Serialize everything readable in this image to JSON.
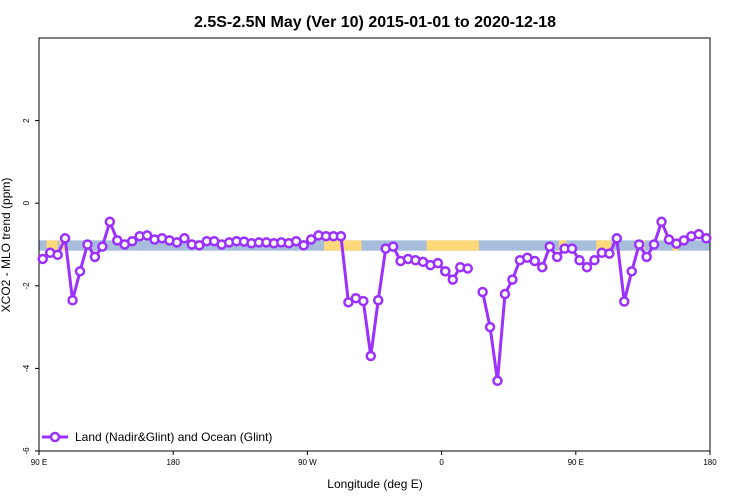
{
  "chart_data": {
    "type": "line",
    "title": "2.5S-2.5N May (Ver 10)   2015-01-01 to 2020-12-18",
    "xlabel": "Longitude (deg E)",
    "ylabel": "XCO2 - MLO trend (ppm)",
    "xlim": [
      90,
      450
    ],
    "ylim": [
      -6,
      4
    ],
    "x_ticks": [
      {
        "value": 90,
        "label": "90 E"
      },
      {
        "value": 162,
        "label": "180"
      },
      {
        "value": 234,
        "label": "90 W"
      },
      {
        "value": 306,
        "label": "0"
      },
      {
        "value": 378,
        "label": "90 E"
      },
      {
        "value": 450,
        "label": "180"
      }
    ],
    "y_ticks": [
      {
        "value": -6,
        "label": "-6"
      },
      {
        "value": -4,
        "label": "-4"
      },
      {
        "value": -2,
        "label": "-2"
      },
      {
        "value": 0,
        "label": "0"
      },
      {
        "value": 2,
        "label": "2"
      }
    ],
    "grid": false,
    "legend_position": "bottom-left",
    "band": {
      "y_range": [
        -1.15,
        -0.9
      ],
      "colors": {
        "ocean": "#a6bddb",
        "land": "#fdd97a"
      },
      "land_x_ranges": [
        [
          94,
          100
        ],
        [
          101,
          104
        ],
        [
          243,
          263
        ],
        [
          298,
          326
        ],
        [
          369,
          373
        ],
        [
          389,
          397
        ],
        [
          413,
          415
        ],
        [
          430,
          433
        ]
      ]
    },
    "series": [
      {
        "name": "Land (Nadir&Glint) and Ocean (Glint)",
        "color": "#9b30ff",
        "segments": [
          {
            "x": [
              92,
              96,
              100,
              104,
              108,
              112,
              116,
              120,
              124,
              128,
              132,
              136,
              140,
              144,
              148,
              152,
              156,
              160,
              164,
              168,
              172,
              176,
              180,
              184,
              188,
              192,
              196,
              200,
              204,
              208,
              212,
              216,
              220,
              224,
              228,
              232,
              236,
              240,
              244,
              248,
              252,
              256,
              260,
              264,
              268,
              272,
              276,
              280,
              284,
              288,
              292,
              296,
              300,
              304,
              308
            ],
            "y": [
              -1.35,
              -1.2,
              -1.25,
              -0.85,
              -2.35,
              -1.65,
              -1.0,
              -1.3,
              -1.05,
              -0.45,
              -0.9,
              -1.0,
              -0.92,
              -0.8,
              -0.78,
              -0.88,
              -0.85,
              -0.9,
              -0.95,
              -0.85,
              -1.0,
              -1.02,
              -0.92,
              -0.92,
              -1.0,
              -0.95,
              -0.92,
              -0.93,
              -0.97,
              -0.95,
              -0.95,
              -0.97,
              -0.95,
              -0.97,
              -0.92,
              -1.02,
              -0.88,
              -0.78,
              -0.8,
              -0.8,
              -0.8,
              -2.4,
              -2.3,
              -2.37,
              -3.7,
              -2.35,
              -1.1,
              -1.05,
              -1.4,
              -1.35,
              -1.38,
              -1.42,
              -1.5,
              -1.45,
              -1.65
            ]
          },
          {
            "x": [
              308,
              312,
              316,
              320
            ],
            "y": [
              -1.65,
              -1.85,
              -1.55,
              -1.58
            ]
          },
          {
            "x": [
              328,
              332,
              336,
              340,
              344,
              348,
              352,
              356,
              360,
              364,
              368,
              372,
              376,
              380,
              384,
              388,
              392,
              396,
              400,
              404,
              408,
              412,
              416,
              420,
              424,
              428,
              432,
              436,
              440,
              444,
              448
            ],
            "y": [
              -2.15,
              -3.0,
              -4.3,
              -2.2,
              -1.85,
              -1.38,
              -1.32,
              -1.4,
              -1.55,
              -1.05,
              -1.3,
              -1.1,
              -1.1,
              -1.38,
              -1.55,
              -1.38,
              -1.2,
              -1.22,
              -0.85,
              -2.38,
              -1.65,
              -1.0,
              -1.3,
              -1.0,
              -0.45,
              -0.88,
              -0.98,
              -0.9,
              -0.8,
              -0.75,
              -0.85
            ]
          }
        ],
        "tail": {
          "x": [
            448,
            452
          ],
          "y": [
            -0.85,
            -0.85
          ]
        }
      }
    ]
  }
}
